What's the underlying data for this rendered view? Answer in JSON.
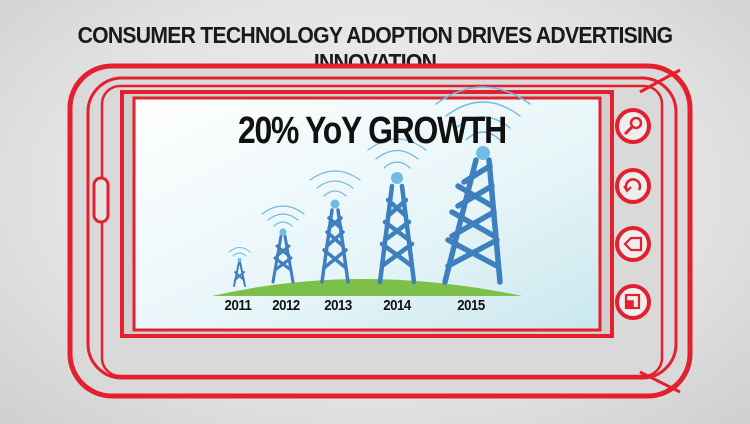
{
  "headline": "CONSUMER TECHNOLOGY ADOPTION DRIVES ADVERTISING INNOVATION",
  "screen": {
    "growth_label": "20% YoY GROWTH",
    "years": [
      "2011",
      "2012",
      "2013",
      "2014",
      "2015"
    ]
  },
  "phone": {
    "frame_color": "#e5202e",
    "side_buttons": [
      "search-icon",
      "refresh-icon",
      "back-icon",
      "window-icon"
    ]
  },
  "colors": {
    "tower": "#3d7fbf",
    "tower_light": "#6fbde6",
    "hill": "#7cc04a",
    "screen_bg": "#d7eef3"
  }
}
